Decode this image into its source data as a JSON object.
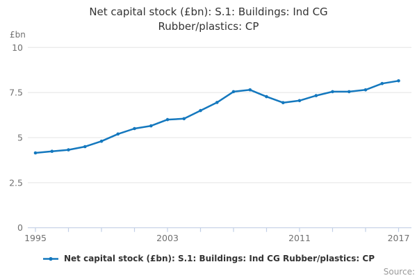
{
  "source_label": "Source:",
  "colors": {
    "line": "#1478be",
    "title_text": "#333333",
    "axis_text": "#707070",
    "gridline": "#e4e4e4",
    "axis_line": "#c2cfe6",
    "source_text": "#999999"
  },
  "chart_data": {
    "type": "line",
    "title": "Net capital stock (£bn): S.1: Buildings: Ind CG Rubber/plastics: CP",
    "unit_label": "£bn",
    "series_name": "Net capital stock (£bn): S.1: Buildings: Ind CG Rubber/plastics: CP",
    "x": [
      1995,
      1996,
      1997,
      1998,
      1999,
      2000,
      2001,
      2002,
      2003,
      2004,
      2005,
      2006,
      2007,
      2008,
      2009,
      2010,
      2011,
      2012,
      2013,
      2014,
      2015,
      2016,
      2017
    ],
    "values": [
      4.15,
      4.24,
      4.32,
      4.5,
      4.8,
      5.2,
      5.5,
      5.65,
      6.0,
      6.05,
      6.5,
      6.95,
      7.55,
      7.65,
      7.27,
      6.94,
      7.05,
      7.33,
      7.55,
      7.55,
      7.65,
      8.0,
      8.15
    ],
    "ylim": [
      0,
      10
    ],
    "yticks": [
      0,
      2.5,
      5,
      7.5,
      10
    ],
    "xlim": [
      1995,
      2017
    ],
    "xtick_minor_every": 2,
    "xticks_labeled": [
      1995,
      2003,
      2011,
      2017
    ],
    "grid": "horizontal-only",
    "legend_position": "bottom-center"
  }
}
